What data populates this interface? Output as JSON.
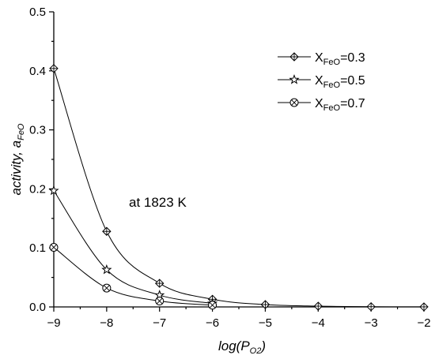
{
  "chart_data": {
    "type": "line",
    "xlabel": "log(P",
    "xlabel_sub": "O2",
    "xlabel_close": ")",
    "ylabel": "activity, a",
    "ylabel_sub": "FeO",
    "annotation": "at 1823 K",
    "xlim": [
      -9,
      -2
    ],
    "ylim": [
      0,
      0.5
    ],
    "xticks": [
      -9,
      -8,
      -7,
      -6,
      -5,
      -4,
      -3,
      -2
    ],
    "yticks": [
      0.0,
      0.1,
      0.2,
      0.3,
      0.4,
      0.5
    ],
    "ytick_labels": [
      "0.0",
      "0.1",
      "0.2",
      "0.3",
      "0.4",
      "0.5"
    ],
    "legend_position": "top-right",
    "series": [
      {
        "name_main": "X",
        "name_sub": "FeO",
        "name_rest": "=0.3",
        "marker": "diamond-plus",
        "x": [
          -9,
          -8,
          -7,
          -6,
          -5,
          -4,
          -3,
          -2
        ],
        "y": [
          0.404,
          0.128,
          0.04,
          0.013,
          0.004,
          0.0013,
          0.0004,
          0.0001
        ]
      },
      {
        "name_main": "X",
        "name_sub": "FeO",
        "name_rest": "=0.5",
        "marker": "star",
        "x": [
          -9,
          -8,
          -7,
          -6
        ],
        "y": [
          0.197,
          0.063,
          0.02,
          0.006
        ]
      },
      {
        "name_main": "X",
        "name_sub": "FeO",
        "name_rest": "=0.7",
        "marker": "circle-x",
        "x": [
          -9,
          -8,
          -7,
          -6
        ],
        "y": [
          0.101,
          0.032,
          0.01,
          0.003
        ]
      }
    ]
  }
}
